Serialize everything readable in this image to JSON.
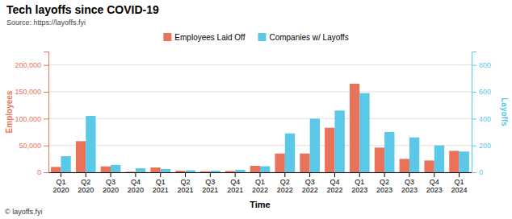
{
  "chart_data": {
    "type": "bar",
    "title": "Tech layoffs since COVID-19",
    "subtitle": "Source: https://layoffs.fyi",
    "annotations": [
      "© layoffs.fyi"
    ],
    "xlabel": "Time",
    "ylabel": "Employees",
    "y2label": "Layoffs",
    "categories": [
      "Q1\n2020",
      "Q2\n2020",
      "Q3\n2020",
      "Q4\n2020",
      "Q1\n2021",
      "Q2\n2021",
      "Q3\n2021",
      "Q4\n2021",
      "Q1\n2022",
      "Q2\n2022",
      "Q3\n2022",
      "Q4\n2022",
      "Q1\n2023",
      "Q2\n2023",
      "Q3\n2023",
      "Q4\n2023",
      "Q1\n2024"
    ],
    "series": [
      {
        "name": "Employees Laid Off",
        "color": "#E8735A",
        "values": [
          10000,
          58000,
          11000,
          1000,
          9000,
          3000,
          2000,
          2500,
          12000,
          35000,
          35000,
          83000,
          165000,
          46000,
          25000,
          22000,
          40000
        ]
      },
      {
        "name": "Companies w/ Layoffs",
        "color": "#5BC8E8",
        "axis": "y2",
        "values": [
          120,
          420,
          55,
          30,
          25,
          15,
          12,
          18,
          45,
          290,
          400,
          460,
          590,
          300,
          260,
          200,
          155
        ]
      }
    ],
    "ylim": [
      0,
      225000
    ],
    "yticks": [
      0,
      {
        "value": 50000,
        "label": "50,000"
      },
      {
        "value": 100000,
        "label": "100,000"
      },
      {
        "value": 150000,
        "label": "150,000"
      },
      {
        "value": 200000,
        "label": "200,000"
      }
    ],
    "y2lim": [
      0,
      900
    ],
    "y2ticks": [
      0,
      200,
      400,
      600,
      800
    ],
    "grid": true,
    "legend": "top"
  }
}
